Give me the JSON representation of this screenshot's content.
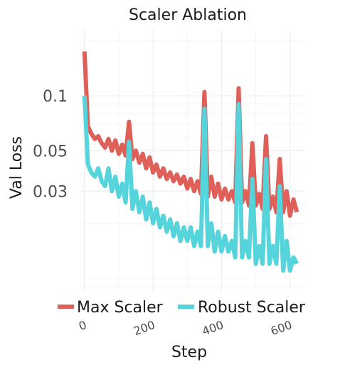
{
  "chart_data": {
    "type": "line",
    "title": "Scaler Ablation",
    "xlabel": "Step",
    "ylabel": "Val Loss",
    "x_scale": "linear",
    "y_scale": "log",
    "xlim": [
      -10,
      640
    ],
    "ylim": [
      0.0085,
      0.23
    ],
    "x_ticks": [
      0,
      200,
      400,
      600
    ],
    "x_tick_labels": [
      "0",
      "200",
      "400",
      "600"
    ],
    "y_ticks": [
      0.03,
      0.05,
      0.1
    ],
    "y_tick_labels": [
      "0.03",
      "0.05",
      "0.1"
    ],
    "grid": true,
    "legend_position": "bottom",
    "series": [
      {
        "name": "Max Scaler",
        "color": "#DE6058",
        "x": [
          0,
          10,
          20,
          30,
          40,
          50,
          60,
          70,
          80,
          90,
          100,
          110,
          120,
          130,
          140,
          150,
          160,
          170,
          180,
          190,
          200,
          210,
          220,
          230,
          240,
          250,
          260,
          270,
          280,
          290,
          300,
          310,
          320,
          330,
          340,
          350,
          360,
          370,
          380,
          390,
          400,
          410,
          420,
          430,
          440,
          450,
          460,
          470,
          480,
          490,
          500,
          510,
          520,
          530,
          540,
          550,
          560,
          570,
          580,
          590,
          600,
          610,
          620
        ],
        "values": [
          0.175,
          0.068,
          0.062,
          0.058,
          0.06,
          0.055,
          0.052,
          0.058,
          0.05,
          0.057,
          0.048,
          0.054,
          0.047,
          0.072,
          0.045,
          0.05,
          0.043,
          0.048,
          0.04,
          0.046,
          0.038,
          0.042,
          0.036,
          0.04,
          0.035,
          0.038,
          0.034,
          0.037,
          0.033,
          0.036,
          0.031,
          0.035,
          0.03,
          0.034,
          0.029,
          0.105,
          0.028,
          0.036,
          0.028,
          0.033,
          0.027,
          0.031,
          0.027,
          0.03,
          0.026,
          0.11,
          0.026,
          0.03,
          0.025,
          0.055,
          0.025,
          0.029,
          0.024,
          0.06,
          0.024,
          0.028,
          0.023,
          0.045,
          0.023,
          0.03,
          0.022,
          0.027,
          0.023
        ]
      },
      {
        "name": "Robust Scaler",
        "color": "#55D4DB",
        "x": [
          0,
          10,
          20,
          30,
          40,
          50,
          60,
          70,
          80,
          90,
          100,
          110,
          120,
          130,
          140,
          150,
          160,
          170,
          180,
          190,
          200,
          210,
          220,
          230,
          240,
          250,
          260,
          270,
          280,
          290,
          300,
          310,
          320,
          330,
          340,
          350,
          360,
          370,
          380,
          390,
          400,
          410,
          420,
          430,
          440,
          450,
          460,
          470,
          480,
          490,
          500,
          510,
          520,
          530,
          540,
          550,
          560,
          570,
          580,
          590,
          600,
          610,
          620
        ],
        "values": [
          0.1,
          0.042,
          0.038,
          0.036,
          0.04,
          0.034,
          0.032,
          0.04,
          0.03,
          0.036,
          0.028,
          0.033,
          0.026,
          0.056,
          0.024,
          0.03,
          0.023,
          0.028,
          0.021,
          0.026,
          0.02,
          0.024,
          0.019,
          0.022,
          0.018,
          0.021,
          0.017,
          0.02,
          0.016,
          0.019,
          0.016,
          0.019,
          0.015,
          0.018,
          0.015,
          0.085,
          0.015,
          0.02,
          0.014,
          0.018,
          0.014,
          0.017,
          0.014,
          0.016,
          0.013,
          0.09,
          0.013,
          0.016,
          0.013,
          0.035,
          0.012,
          0.015,
          0.012,
          0.045,
          0.012,
          0.015,
          0.012,
          0.032,
          0.011,
          0.016,
          0.011,
          0.013,
          0.012
        ]
      }
    ]
  }
}
